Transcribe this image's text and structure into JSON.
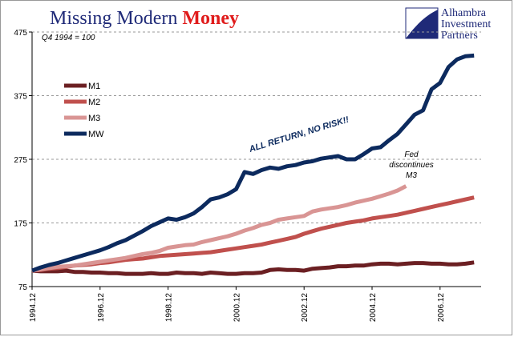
{
  "chart_data": {
    "type": "line",
    "title": "Missing Modern",
    "title_highlight": "Money",
    "subtitle": "Q4 1994 = 100",
    "logo": [
      "Alhambra",
      "Investment",
      "Partners"
    ],
    "annotations": [
      {
        "text": "ALL RETURN, NO RISK!!"
      },
      {
        "lines": [
          "Fed",
          "discontinues",
          "M3"
        ]
      }
    ],
    "categories": [
      "1994.12",
      null,
      null,
      null,
      null,
      null,
      null,
      null,
      "1996.12",
      null,
      null,
      null,
      null,
      null,
      null,
      null,
      "1998.12",
      null,
      null,
      null,
      null,
      null,
      null,
      null,
      "2000.12",
      null,
      null,
      null,
      null,
      null,
      null,
      null,
      "2002.12",
      null,
      null,
      null,
      null,
      null,
      null,
      null,
      "2004.12",
      null,
      null,
      null,
      null,
      null,
      null,
      null,
      "2006.12",
      null,
      null,
      null,
      null
    ],
    "ylim": [
      75,
      475
    ],
    "yticks": [
      75,
      175,
      275,
      375,
      475
    ],
    "grid": true,
    "legend": "left",
    "series": [
      {
        "name": "M1",
        "color": "#6b1f22",
        "values": [
          100,
          99,
          99,
          99,
          100,
          98,
          98,
          97,
          97,
          96,
          96,
          95,
          95,
          95,
          96,
          95,
          95,
          97,
          96,
          96,
          95,
          97,
          96,
          95,
          95,
          96,
          96,
          97,
          101,
          102,
          101,
          101,
          100,
          103,
          104,
          105,
          107,
          107,
          108,
          108,
          110,
          111,
          111,
          110,
          111,
          112,
          112,
          111,
          111,
          110,
          110,
          111,
          113
        ]
      },
      {
        "name": "M2",
        "color": "#c0504d",
        "values": [
          100,
          101,
          103,
          104,
          106,
          108,
          109,
          110,
          112,
          113,
          115,
          117,
          118,
          119,
          121,
          123,
          124,
          125,
          126,
          127,
          128,
          129,
          131,
          133,
          135,
          137,
          139,
          141,
          144,
          147,
          150,
          153,
          158,
          162,
          166,
          169,
          172,
          175,
          177,
          179,
          182,
          184,
          186,
          188,
          191,
          194,
          197,
          200,
          203,
          206,
          209,
          212,
          215
        ]
      },
      {
        "name": "M3",
        "color": "#d99594",
        "values": [
          100,
          102,
          104,
          106,
          107,
          108,
          110,
          112,
          114,
          116,
          118,
          120,
          123,
          126,
          128,
          131,
          136,
          138,
          140,
          141,
          145,
          148,
          151,
          154,
          158,
          163,
          167,
          172,
          175,
          180,
          182,
          184,
          186,
          193,
          196,
          198,
          200,
          203,
          207,
          210,
          213,
          217,
          221,
          226,
          233,
          null,
          null,
          null,
          null,
          null,
          null,
          null,
          null
        ]
      },
      {
        "name": "MW",
        "color": "#0c2a5e",
        "values": [
          100,
          105,
          109,
          112,
          116,
          120,
          124,
          128,
          132,
          137,
          143,
          148,
          155,
          162,
          170,
          176,
          182,
          180,
          184,
          190,
          200,
          212,
          215,
          220,
          228,
          255,
          252,
          258,
          262,
          260,
          264,
          266,
          270,
          272,
          276,
          278,
          280,
          275,
          275,
          283,
          292,
          294,
          305,
          315,
          330,
          345,
          352,
          385,
          395,
          420,
          432,
          437,
          438
        ]
      }
    ]
  }
}
